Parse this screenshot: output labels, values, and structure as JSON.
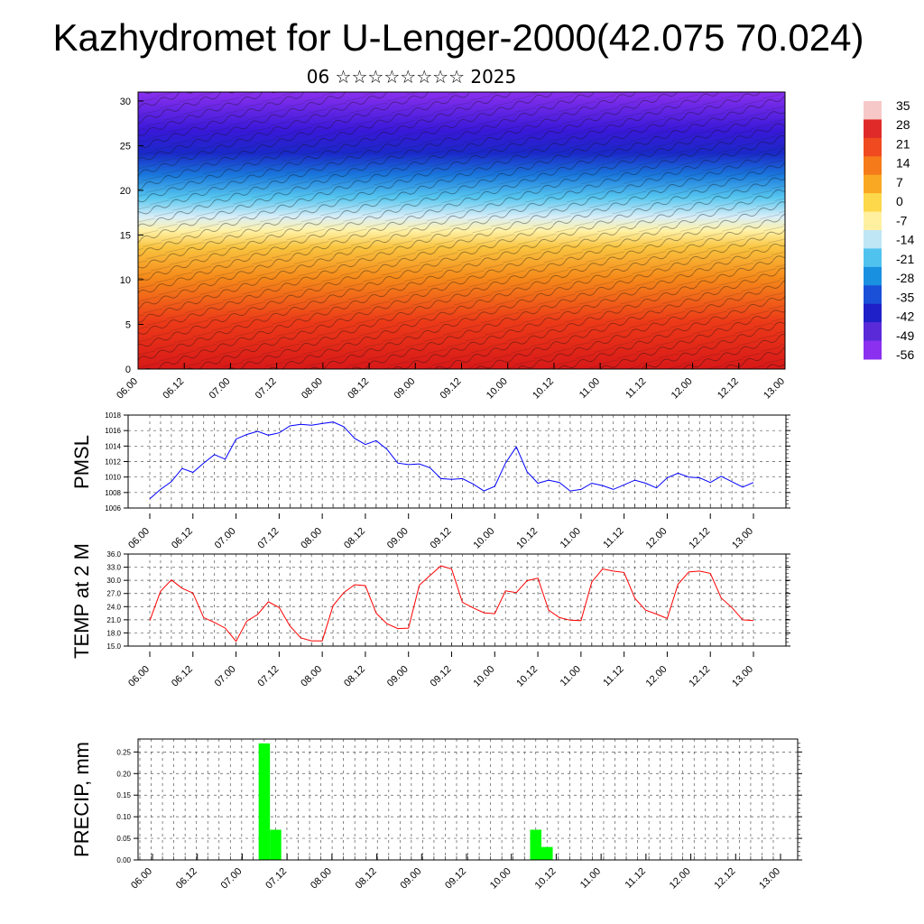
{
  "header": {
    "title": "Kazhydromet for U-Lenger-2000(42.075 70.024)",
    "subtitle": "06 ☆☆☆☆☆☆☆☆ 2025"
  },
  "chart_data": [
    {
      "type": "heatmap",
      "title": "",
      "ylabel": "",
      "ylim": [
        0,
        31
      ],
      "yticks": [
        "0",
        "5",
        "10",
        "15",
        "20",
        "25",
        "30"
      ],
      "xticks": [
        "06.00",
        "06.12",
        "07.00",
        "07.12",
        "08.00",
        "08.12",
        "09.00",
        "09.12",
        "10.00",
        "10.12",
        "11.00",
        "11.12",
        "12.00",
        "12.12",
        "13.00"
      ],
      "colorbar": {
        "labels": [
          "35",
          "28",
          "21",
          "14",
          "7",
          "0",
          "-7",
          "-14",
          "-21",
          "-28",
          "-35",
          "-42",
          "-49",
          "-56"
        ],
        "colors": [
          "#f6c8c8",
          "#e02a2a",
          "#f04a20",
          "#f57a1a",
          "#f9a823",
          "#fcd84a",
          "#fff0a0",
          "#bfe6f5",
          "#4fc3ee",
          "#1a90e0",
          "#1a50d8",
          "#2020c8",
          "#5a2ad8",
          "#8a30ee"
        ]
      },
      "overlay": "wind streamlines"
    },
    {
      "type": "line",
      "ylabel": "PMSL",
      "ylim": [
        1006,
        1018
      ],
      "yticks": [
        "1006",
        "1008",
        "1010",
        "1012",
        "1014",
        "1016",
        "1018"
      ],
      "xticks": [
        "06.00",
        "06.12",
        "07.00",
        "07.12",
        "08.00",
        "08.12",
        "09.00",
        "09.12",
        "10.00",
        "10.12",
        "11.00",
        "11.12",
        "12.00",
        "12.12",
        "13.00"
      ],
      "color": "#0000ff",
      "series": [
        {
          "values": [
            1007.2,
            1008.4,
            1009.4,
            1011.1,
            1010.6,
            1011.8,
            1012.9,
            1012.3,
            1014.9,
            1015.5,
            1015.9,
            1015.4,
            1015.7,
            1016.6,
            1016.8,
            1016.7,
            1016.9,
            1017.1,
            1016.5,
            1015.0,
            1014.2,
            1014.7,
            1013.6,
            1011.8,
            1011.6,
            1011.7,
            1011.2,
            1009.8,
            1009.7,
            1009.8,
            1009.1,
            1008.2,
            1008.8,
            1011.8,
            1013.9,
            1010.7,
            1009.2,
            1009.6,
            1009.3,
            1008.2,
            1008.4,
            1009.2,
            1008.9,
            1008.4,
            1009.0,
            1009.6,
            1009.2,
            1008.6,
            1009.9,
            1010.5,
            1010.0,
            1009.9,
            1009.3,
            1010.1,
            1009.4,
            1008.7,
            1009.3
          ]
        }
      ]
    },
    {
      "type": "line",
      "ylabel": "TEMP at 2 M",
      "ylim": [
        15,
        36
      ],
      "yticks": [
        "15.0",
        "18.0",
        "21.0",
        "24.0",
        "27.0",
        "30.0",
        "33.0",
        "36.0"
      ],
      "xticks": [
        "06.00",
        "06.12",
        "07.00",
        "07.12",
        "08.00",
        "08.12",
        "09.00",
        "09.12",
        "10.00",
        "10.12",
        "11.00",
        "11.12",
        "12.00",
        "12.12",
        "13.00"
      ],
      "color": "#ff0000",
      "series": [
        {
          "values": [
            20.8,
            27.5,
            30.1,
            28.2,
            27.1,
            21.5,
            20.4,
            19.1,
            16.1,
            20.7,
            22.2,
            25.1,
            23.8,
            19.6,
            16.9,
            16.2,
            16.2,
            24.2,
            27.2,
            29.0,
            28.8,
            22.5,
            20.1,
            19.0,
            19.1,
            28.9,
            31.1,
            33.3,
            32.6,
            25.0,
            23.7,
            22.6,
            22.4,
            27.6,
            27.2,
            29.9,
            30.5,
            23.2,
            21.5,
            20.9,
            20.8,
            29.6,
            32.6,
            32.1,
            31.8,
            25.9,
            23.2,
            22.3,
            21.3,
            29.1,
            31.9,
            32.1,
            31.6,
            26.0,
            23.8,
            21.0,
            20.8
          ]
        }
      ]
    },
    {
      "type": "bar",
      "ylabel": "PRECIP, mm",
      "ylim": [
        0,
        0.28
      ],
      "yticks": [
        "0.00",
        "0.05",
        "0.10",
        "0.15",
        "0.20",
        "0.25"
      ],
      "xticks": [
        "06.00",
        "06.12",
        "07.00",
        "07.12",
        "08.00",
        "08.12",
        "09.00",
        "09.12",
        "10.00",
        "10.12",
        "11.00",
        "11.12",
        "12.00",
        "12.12",
        "13.00"
      ],
      "color": "#00ff00",
      "bars": [
        {
          "time_index": 10,
          "value": 0.27
        },
        {
          "time_index": 11,
          "value": 0.07
        },
        {
          "time_index": 34,
          "value": 0.07
        },
        {
          "time_index": 35,
          "value": 0.03
        }
      ]
    }
  ]
}
